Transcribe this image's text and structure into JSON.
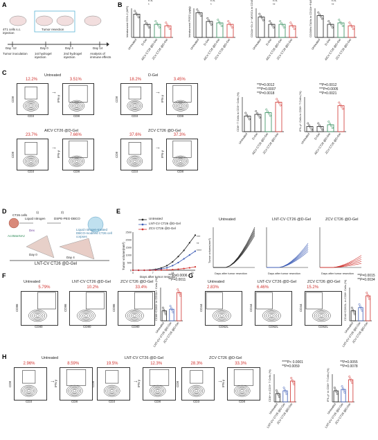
{
  "panels": {
    "A": {
      "letter": "A",
      "cells": "4T1 cells s.c. injection",
      "resection": "Tumor resection",
      "day_minus12": "Day -12",
      "day0": "Day 0",
      "day4": "Day 4",
      "day14": "Day 14",
      "tumor_inoculation": "Tumor inoculation",
      "hydrogel1": "1st hydrogel injection",
      "hydrogel2": "2nd hydrogel injection",
      "analysis": "Analysis of immune effects"
    },
    "B": {
      "letter": "B",
      "charts": [
        {
          "ylabel": "Intratumoral COX-2 (MFI)",
          "yticks": [
            "0",
            "1000",
            "2000",
            "3000",
            "4000",
            "5000"
          ],
          "sig": [
            "*",
            "n.s.",
            "n.s"
          ]
        },
        {
          "ylabel": "Intratumoral PGE2 (pg/g)",
          "yticks": [
            "0",
            "100",
            "200",
            "300",
            "400"
          ],
          "sig": [
            "*",
            "n.s.",
            "n.s"
          ]
        },
        {
          "ylabel": "CD11b+Gr-1+ MDSCs in CD45+ Cells (%)",
          "yticks": [
            "0",
            "5",
            "10",
            "15",
            "20",
            "25"
          ],
          "sig": [
            "**",
            "n.s.",
            "n.s"
          ]
        },
        {
          "ylabel": "CD206hi TAMs in CD11b+F4/80+ Cells(%)",
          "yticks": [
            "0",
            "20",
            "40",
            "60",
            "80"
          ],
          "sig": [
            "**",
            "n.s.",
            "n.s"
          ]
        }
      ],
      "groups": [
        "Untreated",
        "D-Gel",
        "AlCV CT26 @D-Gel",
        "ZCV CT26 @D-Gel"
      ]
    },
    "C": {
      "letter": "C",
      "flows": [
        {
          "title": "Untreated",
          "pct1": "12.2%",
          "pct2": "3.51%"
        },
        {
          "title": "D-Gel",
          "pct1": "18.2%",
          "pct2": "3.45%"
        },
        {
          "title": "AlCV CT26 @D-Gel",
          "pct1": "23.7%",
          "pct2": "7.66%"
        },
        {
          "title": "ZCV CT26 @D-Gel",
          "pct1": "37.6%",
          "pct2": "37.3%"
        }
      ],
      "x1": "CD3",
      "y1": "CD8",
      "x2": "CD8",
      "y2": "IFN-γ",
      "bar1": {
        "ylabel": "CD8+ T Cells in CD3+ Cells (%)",
        "pvals": [
          "**P=0.0012",
          "***P=0.0007",
          "**P=0.0018"
        ]
      },
      "bar2": {
        "ylabel": "IFN-γ+ Cells in CD8+ T Cells (%)",
        "pvals": [
          "**P=0.0012",
          "***P=0.0005",
          "**P=0.0021"
        ]
      }
    },
    "D": {
      "letter": "D",
      "ct26": "CT26 cells",
      "step1": "1)",
      "step1_label": "Liquid nitrogen",
      "step2": "2)",
      "step2_label": "DSPE-PEG-DBCO",
      "ac": "Ac4ManNAz",
      "dex": "Dex",
      "liquid_text": "Liquid nitrogen-treated DBCO-modified CT26 cell corpses",
      "day0": "Day 0",
      "day4": "Day 4",
      "bottom": "LNT-CV CT26 @D-Gel"
    },
    "E": {
      "letter": "E",
      "legend": [
        "Untreated",
        "LNT-CV CT26 @D-Gel",
        "ZCV CT26 @D-Gel"
      ],
      "ylabel": "Tumor volume(mm³)",
      "xlabel": "Days after tumor resection",
      "yticks": [
        "0",
        "500",
        "1000",
        "1500",
        "2000",
        "2500"
      ],
      "xticks": [
        "0",
        "7",
        "14",
        "21"
      ],
      "sig": [
        "***",
        "**",
        "****"
      ],
      "small_titles": [
        "Untreated",
        "LNT-CV CT26 @D-Gel",
        "ZCV CT26 @D-Gel"
      ]
    },
    "F": {
      "letter": "F",
      "titles": [
        "Untreated",
        "LNT-CV CT26 @D-Gel",
        "ZCV CT26 @D-Gel"
      ],
      "pcts": [
        "5.79%",
        "10.2%",
        "33.4%"
      ],
      "x": "CD80",
      "y": "CD86",
      "ylabel": "CD86+CD80+ in CD11c+ Cells (%)",
      "pvals": [
        "***P=0.0006",
        "**P=0.0011"
      ]
    },
    "G": {
      "letter": "G",
      "titles": [
        "Untreated",
        "LNT-CV CT26 @D-Gel",
        "ZCV CT26 @D-Gel"
      ],
      "pcts": [
        "2.83%",
        "6.46%",
        "15.2%"
      ],
      "x": "CD62L",
      "y": "CD44",
      "ylabel": "CD44+CD62L- in CD8+ Cells (%)",
      "pvals": [
        "**P=0.0015",
        "**P=0.0034"
      ]
    },
    "H": {
      "letter": "H",
      "titles": [
        "Untreated",
        "LNT-CV CT26 @D-Gel",
        "ZCV CT26 @D-Gel"
      ],
      "pct1": [
        "2.96%",
        "19.5%",
        "28.3%"
      ],
      "pct2": [
        "8.59%",
        "12.3%",
        "33.3%"
      ],
      "x1": "CD3",
      "y1": "CD8",
      "x2": "CD8",
      "y2": "IFN-γ",
      "bar1": {
        "ylabel": "CD8+ in CD3+ T Cells (%)",
        "pvals": [
          "****P< 0.0001",
          "**P=0.0059"
        ]
      },
      "bar2": {
        "ylabel": "IFN-γ+ in CD8+ T Cells (%)",
        "pvals": [
          "**P=0.0055",
          "**P=0.0078"
        ]
      }
    },
    "group_labels_2": [
      "Untreated",
      "LNT-CV CT26 @D-Gel",
      "ZCV CT26 @D-Gel"
    ],
    "group_labels_4": [
      "Untreated",
      "D-Gel",
      "AlCV CT26 @D-Gel",
      "ZCV CT26 @D-Gel"
    ]
  },
  "colors": {
    "black": "#222222",
    "red": "#d0312d",
    "blue": "#3b5bb5",
    "green": "#2e8b57"
  }
}
